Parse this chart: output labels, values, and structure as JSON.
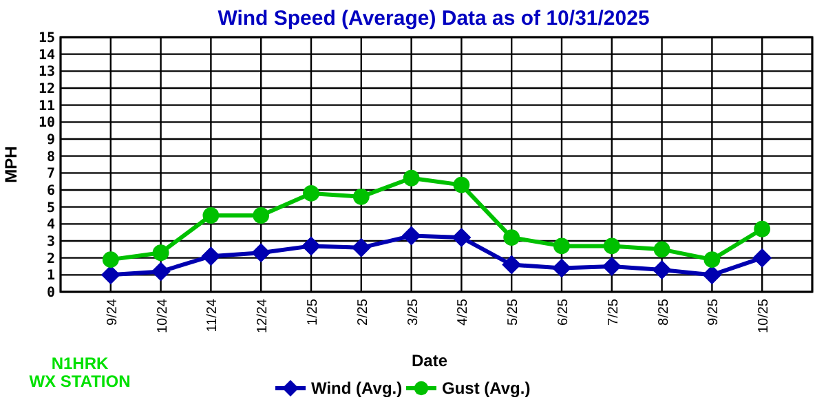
{
  "chart_data": {
    "type": "line",
    "title": "Wind Speed (Average) Data as of 10/31/2025",
    "xlabel": "Date",
    "ylabel": "MPH",
    "categories": [
      "9/24",
      "10/24",
      "11/24",
      "12/24",
      "1/25",
      "2/25",
      "3/25",
      "4/25",
      "5/25",
      "6/25",
      "7/25",
      "8/25",
      "9/25",
      "10/25"
    ],
    "series": [
      {
        "name": "Wind (Avg.)",
        "color": "#0000b0",
        "marker": "diamond",
        "values": [
          1.0,
          1.2,
          2.1,
          2.3,
          2.7,
          2.6,
          3.3,
          3.2,
          1.6,
          1.4,
          1.5,
          1.3,
          1.0,
          2.0
        ]
      },
      {
        "name": "Gust (Avg.)",
        "color": "#00c000",
        "marker": "circle",
        "values": [
          1.9,
          2.3,
          4.5,
          4.5,
          5.8,
          5.6,
          6.7,
          6.3,
          3.2,
          2.7,
          2.7,
          2.5,
          1.9,
          3.7
        ]
      }
    ],
    "ylim": [
      0,
      15
    ],
    "yticks": [
      0,
      1,
      2,
      3,
      4,
      5,
      6,
      7,
      8,
      9,
      10,
      11,
      12,
      13,
      14,
      15
    ],
    "grid": true,
    "legend": "bottom",
    "line_style": "solid",
    "annotations": [
      "N1HRK\nWX STATION"
    ]
  }
}
